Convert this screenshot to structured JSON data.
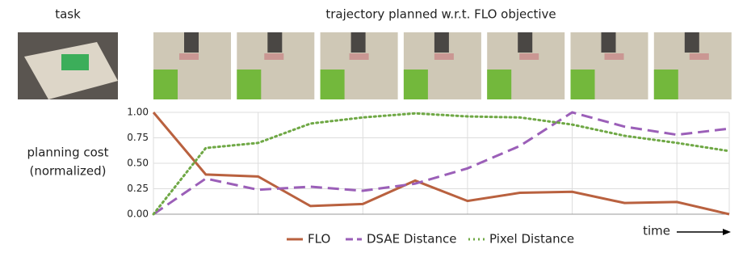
{
  "chart_data": {
    "type": "line",
    "title": "trajectory planned w.r.t. FLO objective",
    "task_label": "task",
    "ylabel": [
      "planning cost",
      "(normalized)"
    ],
    "xlabel": "time",
    "categories": [
      null,
      null,
      null,
      null,
      null,
      null,
      null,
      null,
      null,
      null,
      null,
      null
    ],
    "series": [
      {
        "name": "FLO",
        "color": "#b9613f",
        "linestyle": "solid",
        "values": [
          1.0,
          0.39,
          0.37,
          0.08,
          0.1,
          0.33,
          0.13,
          0.21,
          0.22,
          0.11,
          0.12,
          0.0
        ]
      },
      {
        "name": "DSAE Distance",
        "color": "#9b5fb8",
        "linestyle": "dashed",
        "values": [
          0.0,
          0.35,
          0.24,
          0.27,
          0.23,
          0.3,
          0.45,
          0.67,
          1.0,
          0.86,
          0.78,
          0.84
        ]
      },
      {
        "name": "Pixel Distance",
        "color": "#6fa845",
        "linestyle": "dotted",
        "values": [
          0.0,
          0.65,
          0.7,
          0.89,
          0.95,
          0.99,
          0.96,
          0.95,
          0.88,
          0.77,
          0.7,
          0.62
        ]
      }
    ],
    "ylim": [
      0,
      1
    ],
    "yticks": [
      {
        "value": 0,
        "label": "0.00"
      },
      {
        "value": 0.25,
        "label": "0.25"
      },
      {
        "value": 0.5,
        "label": "0.50"
      },
      {
        "value": 0.75,
        "label": "0.75"
      },
      {
        "value": 1,
        "label": "1.00"
      }
    ],
    "grid": true
  }
}
